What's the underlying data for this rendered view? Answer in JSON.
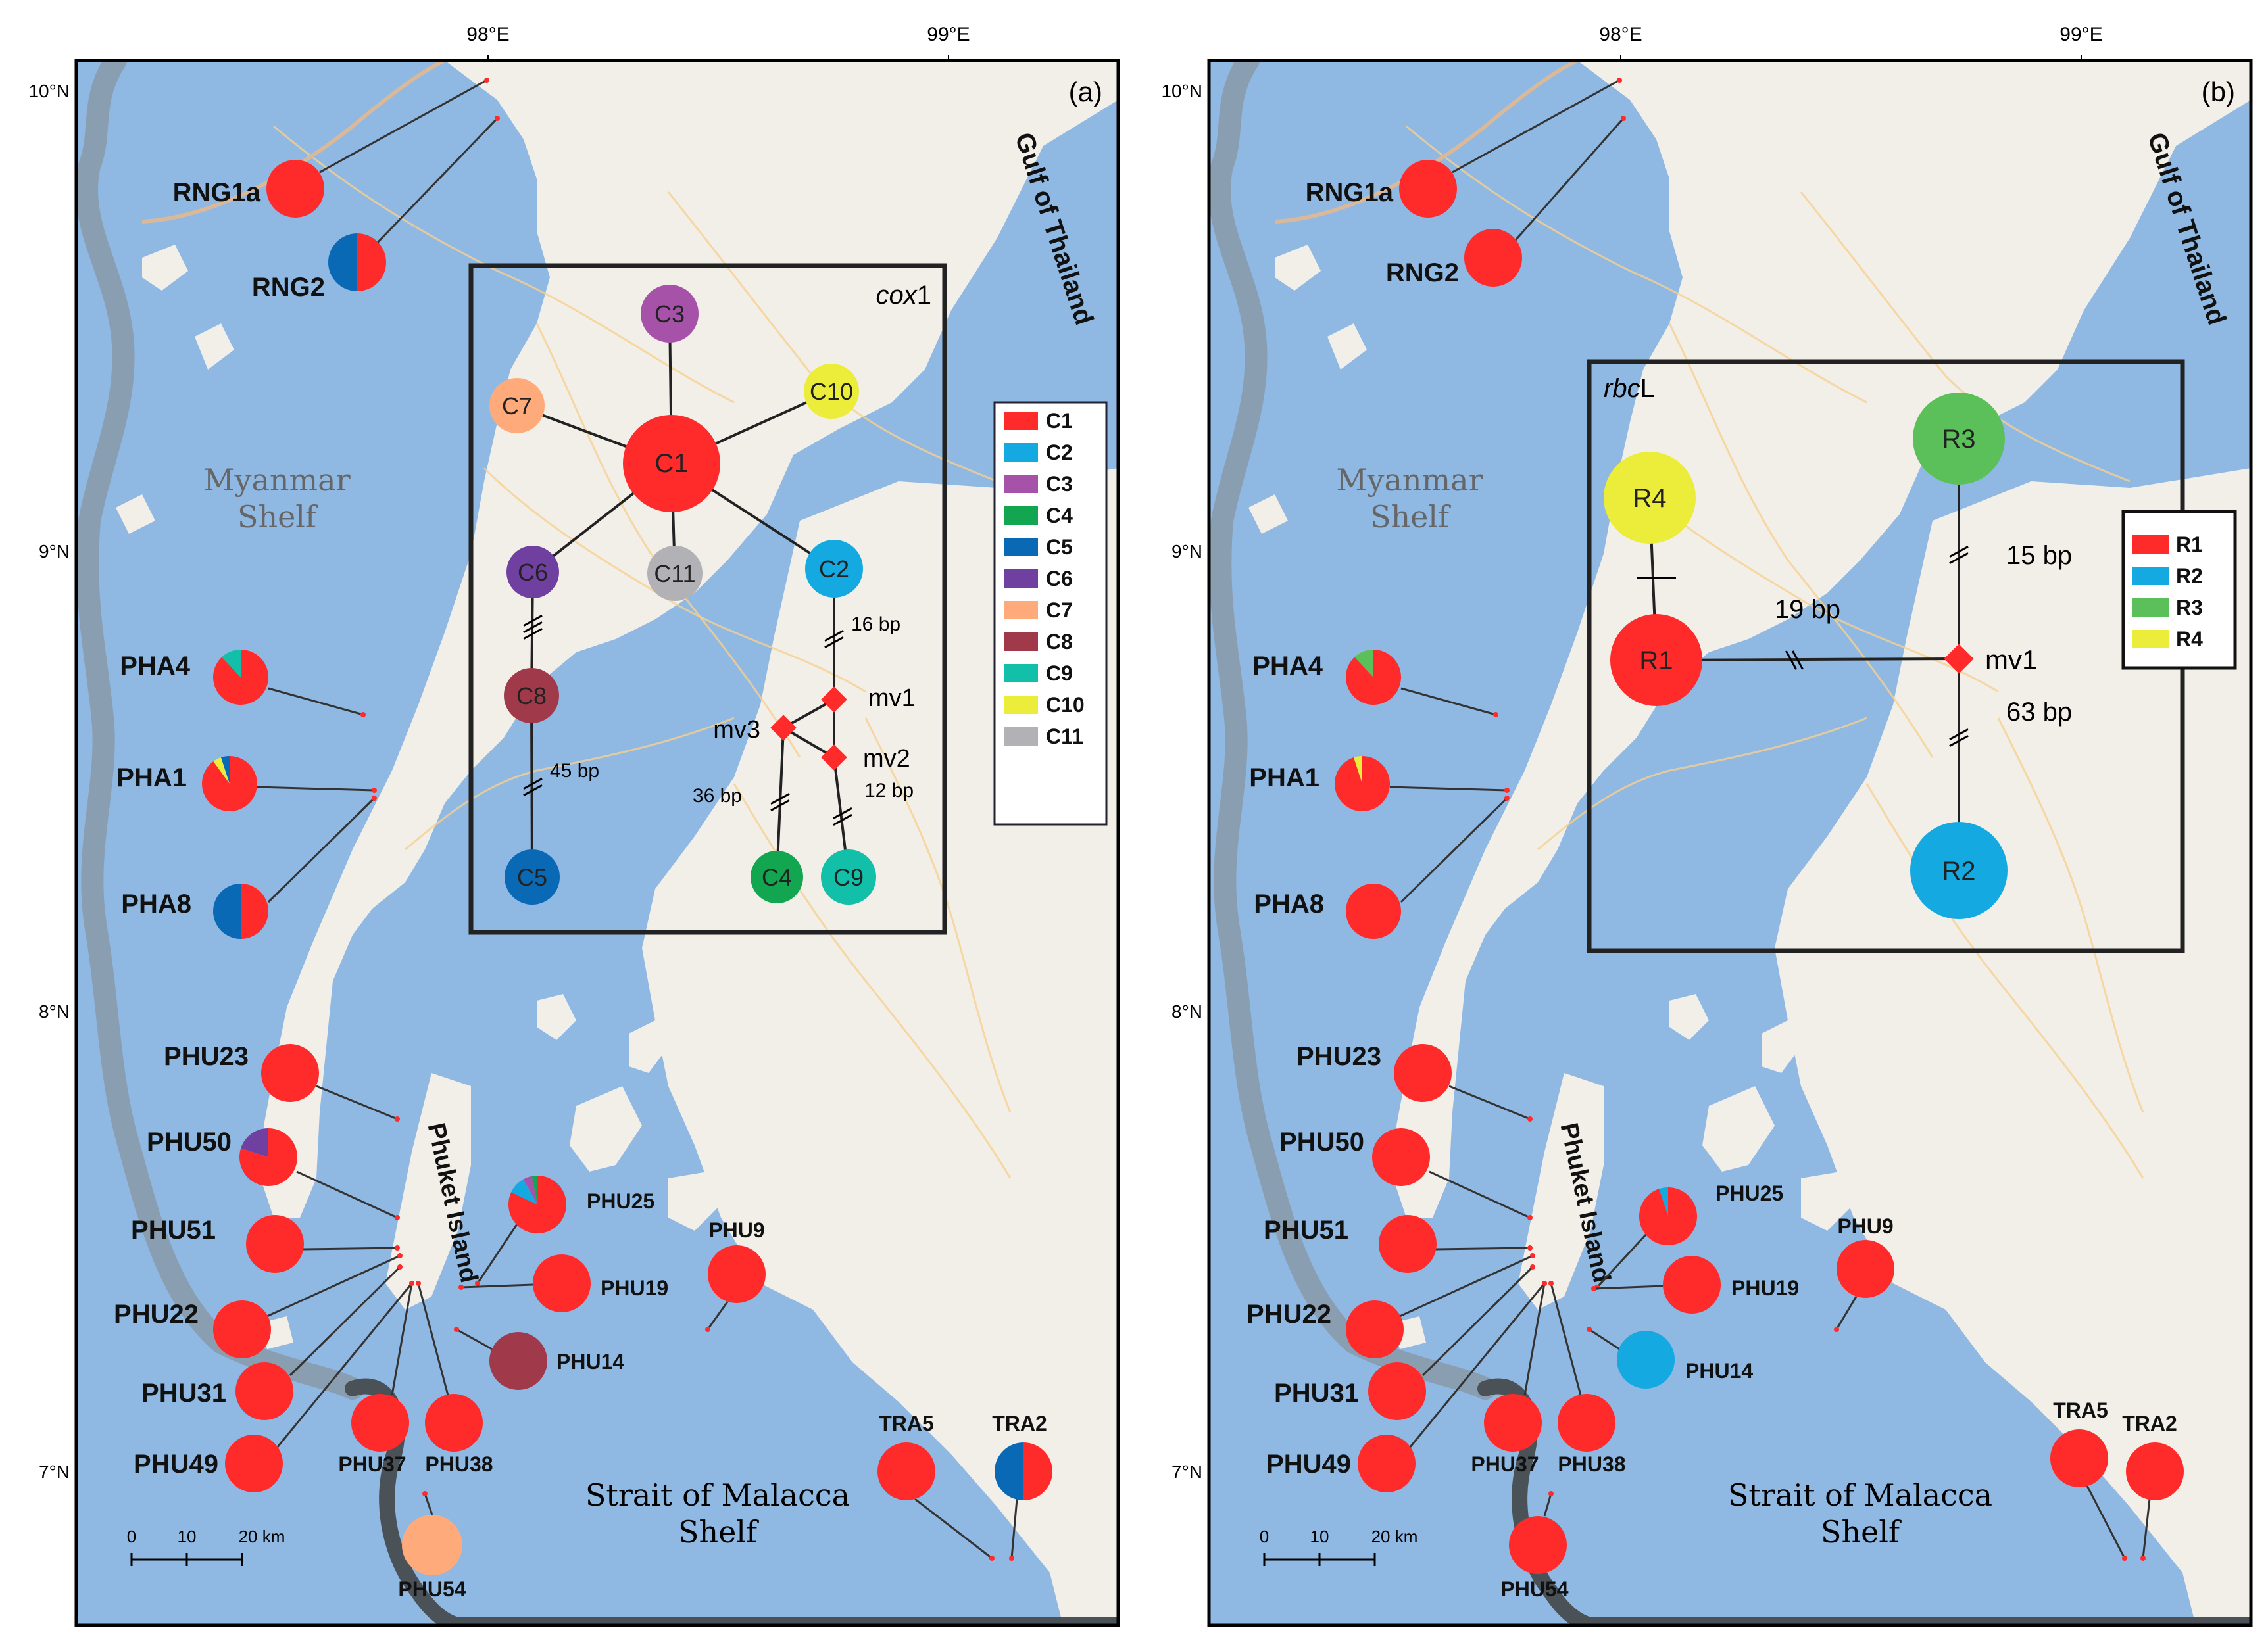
{
  "colors": {
    "sea": "#8fb8e3",
    "land": "#f2efe9",
    "shelf": "#8a99a8",
    "shelf_dark": "#4b5257"
  },
  "axes": {
    "lon_labels": [
      "98°E",
      "99°E"
    ],
    "lat_labels": [
      "10°N",
      "9°N",
      "8°N",
      "7°N"
    ]
  },
  "scale_bar": {
    "ticks": [
      "0",
      "10",
      "20 km"
    ]
  },
  "region_labels": {
    "myanmar": [
      "Myanmar",
      "Shelf"
    ],
    "gulf": "Gulf of Thailand",
    "phuket": "Phuket Island",
    "malacca": [
      "Strait of Malacca",
      "Shelf"
    ]
  },
  "panels": [
    {
      "tag": "(a)",
      "network_title_italic": "cox",
      "network_title_rest": "1",
      "legend": [
        {
          "label": "C1",
          "color": "#ff2a2a"
        },
        {
          "label": "C2",
          "color": "#14a9e0"
        },
        {
          "label": "C3",
          "color": "#a552a8"
        },
        {
          "label": "C4",
          "color": "#12a650"
        },
        {
          "label": "C5",
          "color": "#0a69b4"
        },
        {
          "label": "C6",
          "color": "#7040a0"
        },
        {
          "label": "C7",
          "color": "#ffaa7a"
        },
        {
          "label": "C8",
          "color": "#a03a4a"
        },
        {
          "label": "C9",
          "color": "#12bfa8"
        },
        {
          "label": "C10",
          "color": "#ecec3a"
        },
        {
          "label": "C11",
          "color": "#b2b2b6"
        }
      ],
      "nodes": [
        {
          "label": "C1"
        },
        {
          "label": "C2"
        },
        {
          "label": "C3"
        },
        {
          "label": "C4"
        },
        {
          "label": "C5"
        },
        {
          "label": "C6"
        },
        {
          "label": "C7"
        },
        {
          "label": "C8"
        },
        {
          "label": "C9"
        },
        {
          "label": "C10"
        },
        {
          "label": "C11"
        }
      ],
      "median_vectors": [
        "mv1",
        "mv2",
        "mv3"
      ],
      "mutation_labels": [
        "16 bp",
        "45 bp",
        "36 bp",
        "12 bp"
      ],
      "sites": [
        {
          "name": "RNG1a",
          "slices": [
            {
              "h": "C1",
              "f": 1
            }
          ]
        },
        {
          "name": "RNG2",
          "slices": [
            {
              "h": "C1",
              "f": 0.5
            },
            {
              "h": "C5",
              "f": 0.5
            }
          ]
        },
        {
          "name": "PHA4",
          "slices": [
            {
              "h": "C1",
              "f": 0.88
            },
            {
              "h": "C9",
              "f": 0.12
            }
          ]
        },
        {
          "name": "PHA1",
          "slices": [
            {
              "h": "C1",
              "f": 0.9
            },
            {
              "h": "C10",
              "f": 0.05
            },
            {
              "h": "C5",
              "f": 0.05
            }
          ]
        },
        {
          "name": "PHA8",
          "slices": [
            {
              "h": "C1",
              "f": 0.5
            },
            {
              "h": "C5",
              "f": 0.5
            }
          ]
        },
        {
          "name": "PHU23",
          "slices": [
            {
              "h": "C1",
              "f": 1
            }
          ]
        },
        {
          "name": "PHU50",
          "slices": [
            {
              "h": "C1",
              "f": 0.8
            },
            {
              "h": "C6",
              "f": 0.2
            }
          ]
        },
        {
          "name": "PHU25",
          "slices": [
            {
              "h": "C1",
              "f": 0.82
            },
            {
              "h": "C2",
              "f": 0.1
            },
            {
              "h": "C3",
              "f": 0.05
            },
            {
              "h": "C4",
              "f": 0.03
            }
          ]
        },
        {
          "name": "PHU9",
          "slices": [
            {
              "h": "C1",
              "f": 1
            }
          ]
        },
        {
          "name": "PHU51",
          "slices": [
            {
              "h": "C1",
              "f": 1
            }
          ]
        },
        {
          "name": "PHU19",
          "slices": [
            {
              "h": "C1",
              "f": 1
            }
          ]
        },
        {
          "name": "PHU22",
          "slices": [
            {
              "h": "C1",
              "f": 1
            }
          ]
        },
        {
          "name": "PHU14",
          "slices": [
            {
              "h": "C8",
              "f": 1
            }
          ]
        },
        {
          "name": "PHU31",
          "slices": [
            {
              "h": "C1",
              "f": 1
            }
          ]
        },
        {
          "name": "PHU37",
          "slices": [
            {
              "h": "C1",
              "f": 1
            }
          ]
        },
        {
          "name": "PHU38",
          "slices": [
            {
              "h": "C1",
              "f": 1
            }
          ]
        },
        {
          "name": "PHU49",
          "slices": [
            {
              "h": "C1",
              "f": 1
            }
          ]
        },
        {
          "name": "PHU54",
          "slices": [
            {
              "h": "C7",
              "f": 1
            }
          ]
        },
        {
          "name": "TRA5",
          "slices": [
            {
              "h": "C1",
              "f": 1
            }
          ]
        },
        {
          "name": "TRA2",
          "slices": [
            {
              "h": "C1",
              "f": 0.5
            },
            {
              "h": "C5",
              "f": 0.5
            }
          ]
        }
      ]
    },
    {
      "tag": "(b)",
      "network_title_italic": "rbc",
      "network_title_rest": "L",
      "legend": [
        {
          "label": "R1",
          "color": "#ff2a2a"
        },
        {
          "label": "R2",
          "color": "#14a9e0"
        },
        {
          "label": "R3",
          "color": "#5cc05a"
        },
        {
          "label": "R4",
          "color": "#ecec3a"
        }
      ],
      "nodes": [
        {
          "label": "R1"
        },
        {
          "label": "R2"
        },
        {
          "label": "R3"
        },
        {
          "label": "R4"
        }
      ],
      "median_vectors": [
        "mv1"
      ],
      "mutation_labels": [
        "19 bp",
        "15 bp",
        "63 bp"
      ],
      "sites": [
        {
          "name": "RNG1a",
          "slices": [
            {
              "h": "R1",
              "f": 1
            }
          ]
        },
        {
          "name": "RNG2",
          "slices": [
            {
              "h": "R1",
              "f": 1
            }
          ]
        },
        {
          "name": "PHA4",
          "slices": [
            {
              "h": "R1",
              "f": 0.88
            },
            {
              "h": "R3",
              "f": 0.12
            }
          ]
        },
        {
          "name": "PHA1",
          "slices": [
            {
              "h": "R1",
              "f": 0.95
            },
            {
              "h": "R4",
              "f": 0.05
            }
          ]
        },
        {
          "name": "PHA8",
          "slices": [
            {
              "h": "R1",
              "f": 1
            }
          ]
        },
        {
          "name": "PHU23",
          "slices": [
            {
              "h": "R1",
              "f": 1
            }
          ]
        },
        {
          "name": "PHU50",
          "slices": [
            {
              "h": "R1",
              "f": 1
            }
          ]
        },
        {
          "name": "PHU25",
          "slices": [
            {
              "h": "R1",
              "f": 0.95
            },
            {
              "h": "R2",
              "f": 0.05
            }
          ]
        },
        {
          "name": "PHU9",
          "slices": [
            {
              "h": "R1",
              "f": 1
            }
          ]
        },
        {
          "name": "PHU51",
          "slices": [
            {
              "h": "R1",
              "f": 1
            }
          ]
        },
        {
          "name": "PHU19",
          "slices": [
            {
              "h": "R1",
              "f": 1
            }
          ]
        },
        {
          "name": "PHU22",
          "slices": [
            {
              "h": "R1",
              "f": 1
            }
          ]
        },
        {
          "name": "PHU14",
          "slices": [
            {
              "h": "R2",
              "f": 1
            }
          ]
        },
        {
          "name": "PHU31",
          "slices": [
            {
              "h": "R1",
              "f": 1
            }
          ]
        },
        {
          "name": "PHU37",
          "slices": [
            {
              "h": "R1",
              "f": 1
            }
          ]
        },
        {
          "name": "PHU38",
          "slices": [
            {
              "h": "R1",
              "f": 1
            }
          ]
        },
        {
          "name": "PHU49",
          "slices": [
            {
              "h": "R1",
              "f": 1
            }
          ]
        },
        {
          "name": "PHU54",
          "slices": [
            {
              "h": "R1",
              "f": 1
            }
          ]
        },
        {
          "name": "TRA5",
          "slices": [
            {
              "h": "R1",
              "f": 1
            }
          ]
        },
        {
          "name": "TRA2",
          "slices": [
            {
              "h": "R1",
              "f": 1
            }
          ]
        }
      ]
    }
  ]
}
